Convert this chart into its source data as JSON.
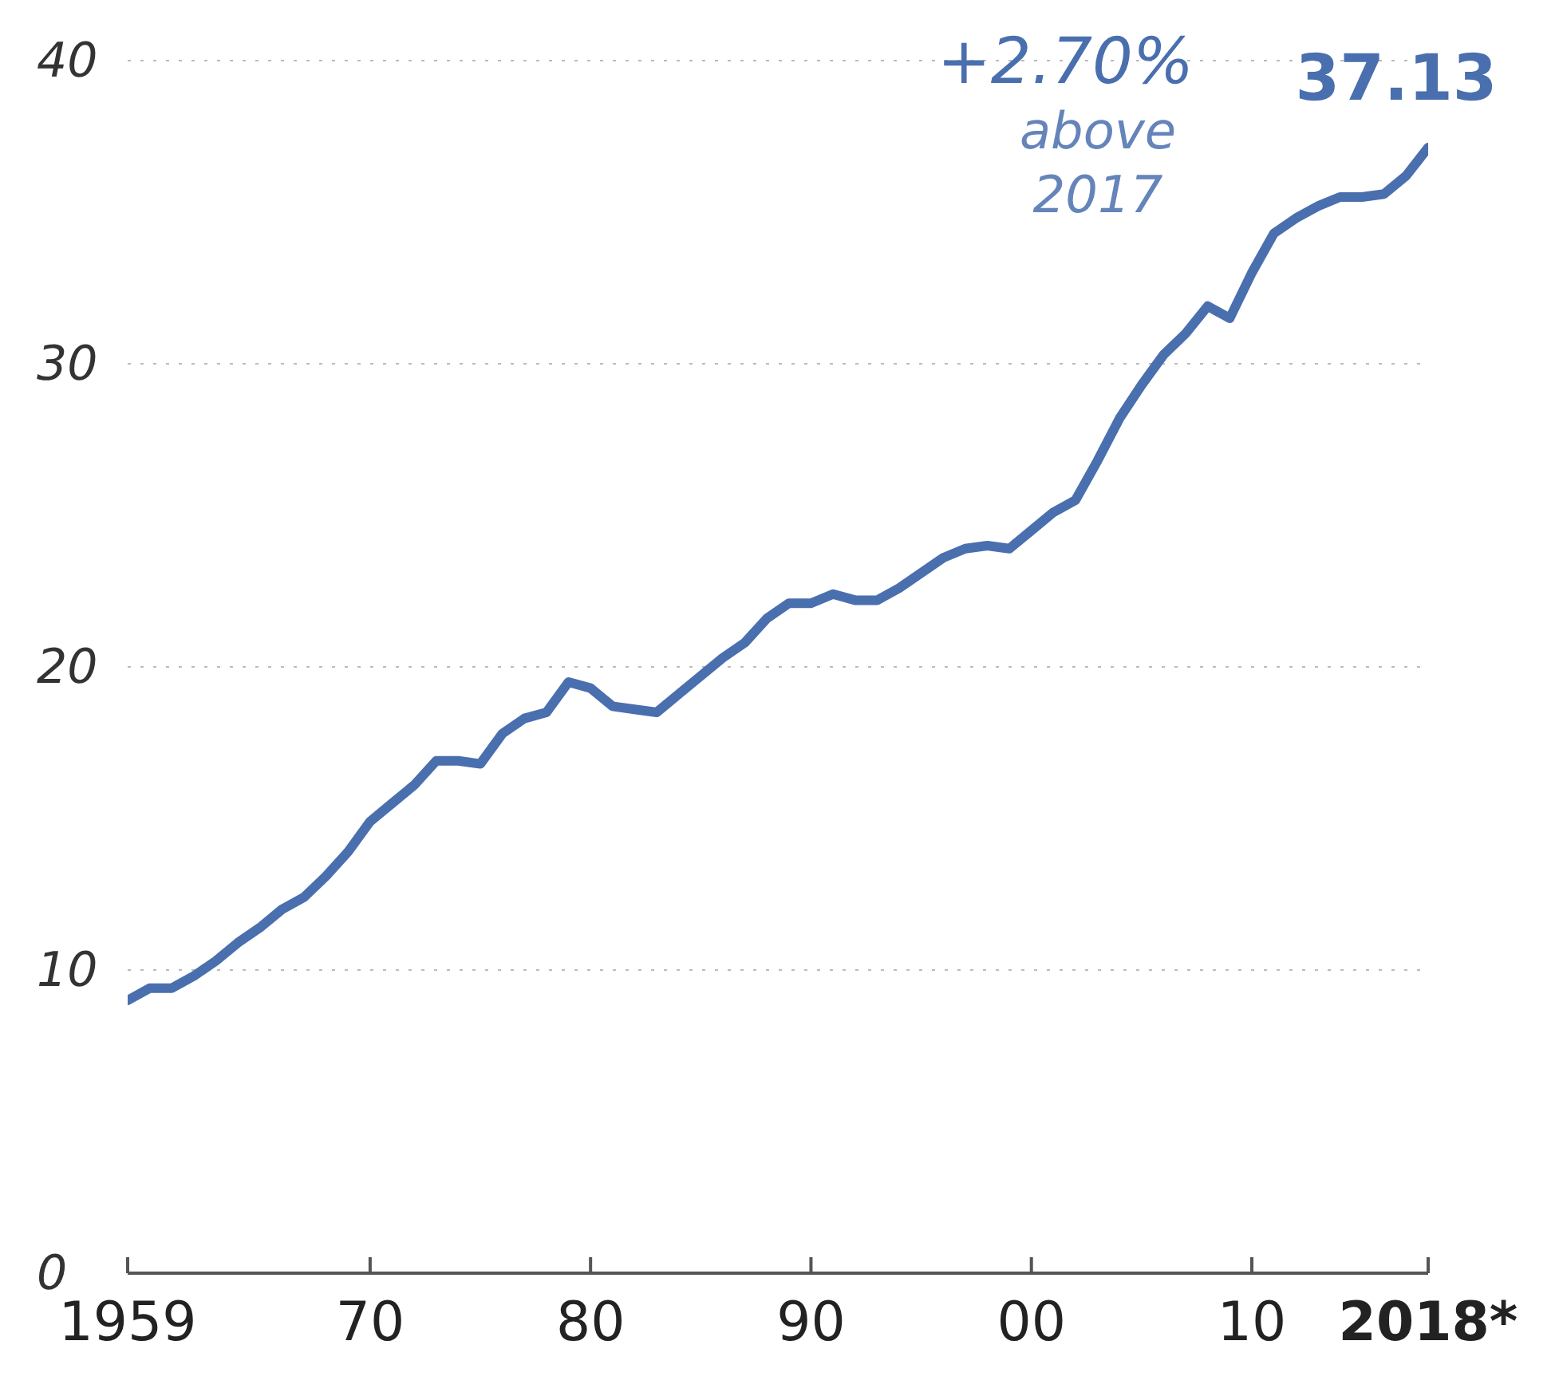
{
  "chart_data": {
    "type": "line",
    "x": [
      1959,
      1960,
      1961,
      1962,
      1963,
      1964,
      1965,
      1966,
      1967,
      1968,
      1969,
      1970,
      1971,
      1972,
      1973,
      1974,
      1975,
      1976,
      1977,
      1978,
      1979,
      1980,
      1981,
      1982,
      1983,
      1984,
      1985,
      1986,
      1987,
      1988,
      1989,
      1990,
      1991,
      1992,
      1993,
      1994,
      1995,
      1996,
      1997,
      1998,
      1999,
      2000,
      2001,
      2002,
      2003,
      2004,
      2005,
      2006,
      2007,
      2008,
      2009,
      2010,
      2011,
      2012,
      2013,
      2014,
      2015,
      2016,
      2017,
      2018
    ],
    "series": [
      {
        "color": "#4a6fae",
        "values": [
          9.0,
          9.4,
          9.4,
          9.8,
          10.3,
          10.9,
          11.4,
          12.0,
          12.4,
          13.1,
          13.9,
          14.9,
          15.5,
          16.1,
          16.9,
          16.9,
          16.8,
          17.8,
          18.3,
          18.5,
          19.5,
          19.3,
          18.7,
          18.6,
          18.5,
          19.1,
          19.7,
          20.3,
          20.8,
          21.6,
          22.1,
          22.1,
          22.4,
          22.2,
          22.2,
          22.6,
          23.1,
          23.6,
          23.9,
          24.0,
          23.9,
          24.5,
          25.1,
          25.5,
          26.8,
          28.2,
          29.3,
          30.3,
          31.0,
          31.9,
          31.5,
          33.0,
          34.3,
          34.8,
          35.2,
          35.5,
          35.5,
          35.6,
          36.2,
          37.13
        ]
      }
    ],
    "xlim": [
      1959,
      2018
    ],
    "xticks": [
      {
        "value": 1959,
        "label": "1959"
      },
      {
        "value": 1970,
        "label": "70"
      },
      {
        "value": 1980,
        "label": "80"
      },
      {
        "value": 1990,
        "label": "90"
      },
      {
        "value": 2000,
        "label": "00"
      },
      {
        "value": 2010,
        "label": "10"
      },
      {
        "value": 2018,
        "label": "2018*"
      }
    ],
    "ylim": [
      0,
      40
    ],
    "yticks": [
      0,
      10,
      20,
      30,
      40
    ],
    "grid": "y",
    "marker": "none",
    "line_style": "solid",
    "annotations": [
      "+2.70%",
      "above 2017",
      {
        "text": "37.13",
        "x": 2018,
        "y": 37.13
      }
    ]
  }
}
